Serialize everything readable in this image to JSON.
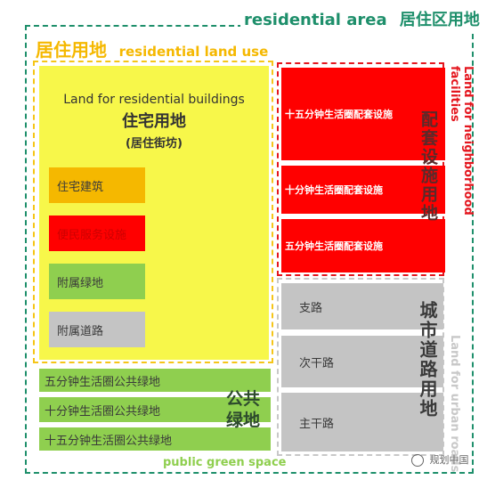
{
  "residential_area": {
    "en": "residential area",
    "zh": "居住区用地"
  },
  "residential_land_use": {
    "zh": "居住用地",
    "en": "residential land use"
  },
  "residential_buildings": {
    "en": "Land for residential buildings",
    "zh": "住宅用地",
    "sub": "(居住街坊)",
    "items": [
      "住宅建筑",
      "便民服务设施",
      "附属绿地",
      "附属道路"
    ]
  },
  "neighborhood_facilities": {
    "en": "Land for neighborhood facilities",
    "zh": "配套设施用地",
    "items": [
      "十五分钟生活圈配套设施",
      "十分钟生活圈配套设施",
      "五分钟生活圈配套设施"
    ]
  },
  "urban_roads": {
    "en": "Land for urban roads",
    "zh": "城市道路用地",
    "items": [
      "支路",
      "次干路",
      "主干路"
    ]
  },
  "public_green": {
    "en": "public green space",
    "zh": "公共绿地",
    "items": [
      "五分钟生活圈公共绿地",
      "十分钟生活圈公共绿地",
      "十五分钟生活圈公共绿地"
    ]
  },
  "watermark": "规划中国",
  "colors": {
    "green_title": "#1e8f6b",
    "orange_title": "#f5b800",
    "red_title": "#e4161e",
    "gray_title": "#c8c8c8",
    "public_green_title": "#8fcf4f"
  }
}
